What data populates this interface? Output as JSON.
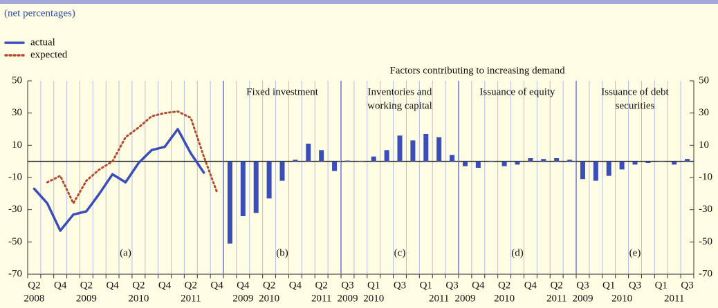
{
  "subtitle": "(net percentages)",
  "heading": "Factors contributing to increasing demand",
  "chart_data": [
    {
      "type": "line",
      "label": "(a)",
      "categories": [
        "Q2",
        null,
        "Q4",
        null,
        "Q2",
        null,
        "Q4",
        null,
        "Q2",
        null,
        "Q4",
        null,
        "Q2",
        null,
        "Q4"
      ],
      "year_labels": [
        "2008",
        null,
        null,
        null,
        "2009",
        null,
        null,
        null,
        "2010",
        null,
        null,
        null,
        "2011",
        null,
        null
      ],
      "series": [
        {
          "name": "actual",
          "color": "#3a4db8",
          "style": "solid",
          "values": [
            -17,
            -26,
            -43,
            -33,
            -31,
            -20,
            -8,
            -13,
            -1,
            7,
            9,
            20,
            5,
            -7,
            null
          ]
        },
        {
          "name": "expected",
          "color": "#b54a2e",
          "style": "dotted",
          "values": [
            null,
            -13,
            -9,
            -26,
            -12,
            -5,
            0,
            15,
            21,
            28,
            30,
            31,
            27,
            3,
            -19
          ]
        }
      ],
      "ylim": [
        -70,
        50
      ],
      "yticks": [
        -70,
        -50,
        -30,
        -10,
        10,
        30,
        50
      ]
    },
    {
      "type": "bar",
      "label": "(b)",
      "title": [
        "Fixed investment"
      ],
      "color": "#3a4db8",
      "categories": [
        null,
        "Q4",
        null,
        "Q2",
        null,
        "Q4",
        null,
        "Q2",
        null
      ],
      "year_labels": [
        null,
        "2009",
        null,
        "2010",
        null,
        null,
        null,
        "2011",
        null
      ],
      "values": [
        -51,
        -34,
        -32,
        -23,
        -12,
        1,
        11,
        7,
        -6
      ],
      "ylim": [
        -70,
        50
      ]
    },
    {
      "type": "bar",
      "label": "(c)",
      "title": [
        "Inventories and",
        "working capital"
      ],
      "color": "#3a4db8",
      "categories": [
        "Q3",
        null,
        "Q1",
        null,
        "Q3",
        null,
        "Q1",
        null,
        "Q3"
      ],
      "year_labels": [
        "2009",
        null,
        "2010",
        null,
        null,
        null,
        null,
        "2011",
        null
      ],
      "values": [
        0.5,
        0.3,
        3,
        7,
        16,
        13,
        17,
        15,
        4
      ],
      "ylim": [
        -70,
        50
      ]
    },
    {
      "type": "bar",
      "label": "(d)",
      "title": [
        "Issuance of equity"
      ],
      "color": "#3a4db8",
      "categories": [
        null,
        "Q4",
        null,
        "Q2",
        null,
        "Q4",
        null,
        "Q2",
        null
      ],
      "year_labels": [
        "2009",
        null,
        null,
        "2010",
        null,
        null,
        null,
        "2011",
        null
      ],
      "values": [
        -3,
        -4,
        0.3,
        -3,
        -2,
        2,
        1.5,
        2,
        1
      ],
      "ylim": [
        -70,
        50
      ]
    },
    {
      "type": "bar",
      "label": "(e)",
      "title": [
        "Issuance of debt",
        "securities"
      ],
      "color": "#3a4db8",
      "categories": [
        "Q3",
        null,
        "Q1",
        null,
        "Q3",
        null,
        "Q1",
        null,
        "Q3"
      ],
      "year_labels": [
        "2009",
        null,
        null,
        "2010",
        null,
        null,
        null,
        "2011",
        null
      ],
      "values": [
        -11,
        -12,
        -9,
        -5,
        -2,
        -1,
        0.3,
        -2,
        1.5
      ],
      "ylim": [
        -70,
        50
      ],
      "yticks": [
        -70,
        -50,
        -30,
        -10,
        10,
        30,
        50
      ]
    }
  ]
}
